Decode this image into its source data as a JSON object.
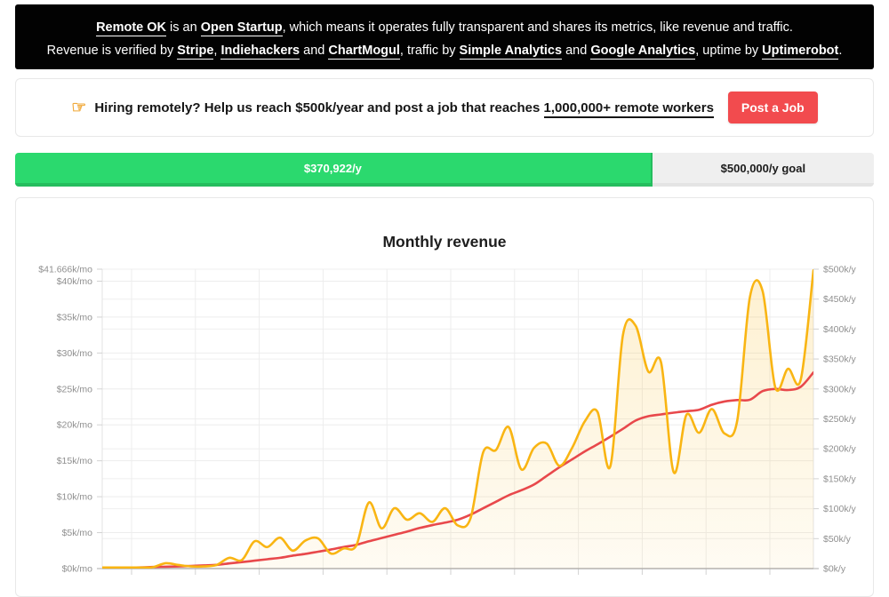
{
  "banner": {
    "line1": [
      {
        "t": "Remote OK",
        "u": true
      },
      {
        "t": " is an ",
        "u": false
      },
      {
        "t": "Open Startup",
        "u": true
      },
      {
        "t": ", which means it operates fully transparent and shares its metrics, like revenue and traffic.",
        "u": false
      }
    ],
    "line2": [
      {
        "t": "Revenue is verified by ",
        "u": false
      },
      {
        "t": "Stripe",
        "u": true
      },
      {
        "t": ", ",
        "u": false
      },
      {
        "t": "Indiehackers",
        "u": true
      },
      {
        "t": " and ",
        "u": false
      },
      {
        "t": "ChartMogul",
        "u": true
      },
      {
        "t": ", traffic by ",
        "u": false
      },
      {
        "t": "Simple Analytics",
        "u": true
      },
      {
        "t": " and ",
        "u": false
      },
      {
        "t": "Google Analytics",
        "u": true
      },
      {
        "t": ", uptime by ",
        "u": false
      },
      {
        "t": "Uptimerobot",
        "u": true
      },
      {
        "t": ".",
        "u": false
      }
    ]
  },
  "hiring": {
    "pointer_icon": "☞",
    "text_before": "Hiring remotely? Help us reach $500k/year and post a job that reaches ",
    "text_link": "1,000,000+ remote workers",
    "button_label": "Post a Job",
    "button_color": "#f24b4e"
  },
  "progress": {
    "current_label": "$370,922/y",
    "goal_label": "$500,000/y goal",
    "percent": 74.2,
    "bar_color": "#2bd96e",
    "track_color": "#efefef"
  },
  "chart_data": {
    "type": "line",
    "title": "Monthly revenue",
    "ylim_k_per_month": [
      0,
      41.666
    ],
    "grid": true,
    "legend": "none",
    "y_axis_left": {
      "unit": "$k/mo",
      "ticks": [
        {
          "label": "$41.666k/mo",
          "value": 41.666
        },
        {
          "label": "$40k/mo",
          "value": 40
        },
        {
          "label": "$35k/mo",
          "value": 35
        },
        {
          "label": "$30k/mo",
          "value": 30
        },
        {
          "label": "$25k/mo",
          "value": 25
        },
        {
          "label": "$20k/mo",
          "value": 20
        },
        {
          "label": "$15k/mo",
          "value": 15
        },
        {
          "label": "$10k/mo",
          "value": 10
        },
        {
          "label": "$5k/mo",
          "value": 5
        },
        {
          "label": "$0k/mo",
          "value": 0
        }
      ]
    },
    "y_axis_right": {
      "unit": "$k/y",
      "ticks": [
        {
          "label": "$500k/y",
          "value": 500
        },
        {
          "label": "$450k/y",
          "value": 450
        },
        {
          "label": "$400k/y",
          "value": 400
        },
        {
          "label": "$350k/y",
          "value": 350
        },
        {
          "label": "$300k/y",
          "value": 300
        },
        {
          "label": "$250k/y",
          "value": 250
        },
        {
          "label": "$200k/y",
          "value": 200
        },
        {
          "label": "$150k/y",
          "value": 150
        },
        {
          "label": "$100k/y",
          "value": 100
        },
        {
          "label": "$50k/y",
          "value": 50
        },
        {
          "label": "$0k/y",
          "value": 0
        }
      ]
    },
    "series": [
      {
        "id": "monthly-revenue-line",
        "color": "#f9b513",
        "fill_top": "rgba(249,181,19,0.20)",
        "fill_bottom": "rgba(249,181,19,0.05)",
        "values_k_per_month": [
          0.15,
          0.15,
          0.15,
          0.15,
          0.2,
          0.75,
          0.5,
          0.3,
          0.3,
          0.5,
          1.5,
          1.2,
          3.8,
          3.0,
          4.3,
          2.5,
          3.9,
          4.2,
          2.1,
          2.8,
          3.2,
          9.2,
          5.6,
          8.4,
          6.8,
          7.7,
          6.5,
          8.4,
          6.0,
          7.0,
          16.2,
          16.5,
          19.7,
          13.8,
          16.8,
          17.4,
          14.3,
          16.8,
          20.5,
          21.8,
          14.2,
          32.5,
          33.8,
          27.4,
          28.7,
          13.4,
          21.4,
          18.9,
          22.2,
          18.8,
          20.6,
          37.8,
          38.6,
          25.2,
          27.8,
          26.3,
          41.5
        ]
      },
      {
        "id": "trend-line",
        "color": "#e8484b",
        "values_k_per_month": [
          0.05,
          0.1,
          0.12,
          0.17,
          0.22,
          0.26,
          0.3,
          0.37,
          0.44,
          0.52,
          0.72,
          0.9,
          1.1,
          1.3,
          1.5,
          1.8,
          2.05,
          2.35,
          2.65,
          3.0,
          3.3,
          3.8,
          4.25,
          4.7,
          5.15,
          5.65,
          6.05,
          6.4,
          6.8,
          7.5,
          8.4,
          9.3,
          10.2,
          10.9,
          11.7,
          12.9,
          14.1,
          15.2,
          16.3,
          17.3,
          18.35,
          19.45,
          20.6,
          21.2,
          21.45,
          21.7,
          21.9,
          22.1,
          22.8,
          23.25,
          23.45,
          23.5,
          24.7,
          25.0,
          24.85,
          25.3,
          27.3
        ]
      }
    ]
  }
}
